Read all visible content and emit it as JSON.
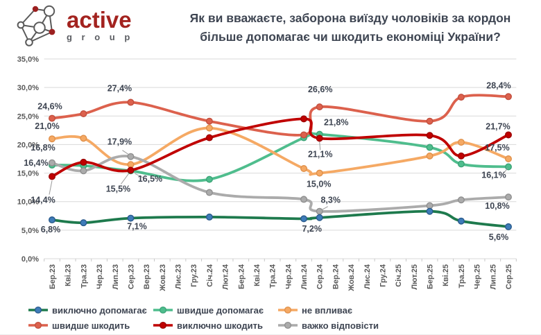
{
  "header": {
    "logo_text": "active",
    "logo_subtext": "g r o u p",
    "brand_color": "#a3231f",
    "title_line1": "Як ви вважаєте, заборона виїзду чоловіків за кордон",
    "title_line2": "більше допомагає чи шкодить економіці України?"
  },
  "chart_data": {
    "type": "line",
    "title": "Як ви вважаєте, заборона виїзду чоловіків за кордон більше допомагає чи шкодить економіці України?",
    "xlabel": "",
    "ylabel": "",
    "ylim": [
      0,
      35
    ],
    "grid": true,
    "legend_position": "bottom",
    "y_ticks": [
      "0,0%",
      "5,0%",
      "10,0%",
      "15,0%",
      "20,0%",
      "25,0%",
      "30,0%",
      "35,0%"
    ],
    "x_labels": [
      "Бер.23",
      "Кві.23",
      "Тра.23",
      "Чер.23",
      "Лип.23",
      "Сер.23",
      "Вер.23",
      "Жов.23",
      "Лис.23",
      "Гру.23",
      "Січ.24",
      "Лют.24",
      "Бер.24",
      "Кві.24",
      "Тра.24",
      "Чер.24",
      "Лип.24",
      "Сер.24",
      "Вер.24",
      "Жов.24",
      "Лис.24",
      "Гру.24",
      "Січ.25",
      "Лют.25",
      "Бер.25",
      "Кві.25",
      "Тра.25",
      "Чер.25",
      "Лип.25",
      "Сер.25"
    ],
    "survey_wave_labels": [
      "Бер.23",
      "Тра.23",
      "Сер.23",
      "Січ.24",
      "Лип.24",
      "Сер.24",
      "Бер.25",
      "Тра.25",
      "Сер.25"
    ],
    "wave_month_indices": [
      0,
      2,
      5,
      10,
      16,
      17,
      24,
      26,
      29
    ],
    "series": [
      {
        "name": "виключно допомагає",
        "color": "#1e7a4d",
        "marker_fill": "#3e7cb9",
        "marker_stroke": "#2a5a8c",
        "values": [
          6.8,
          6.3,
          7.1,
          7.3,
          7.0,
          7.2,
          8.3,
          6.6,
          5.6
        ],
        "labels": [
          {
            "w": 0,
            "t": "6,8%",
            "dx": -2,
            "dy": 18
          },
          {
            "w": 2,
            "t": "7,1%",
            "dx": 9,
            "dy": 16
          },
          {
            "w": 5,
            "t": "7,2%",
            "dx": -11,
            "dy": 20
          },
          {
            "w": 8,
            "t": "5,6%",
            "dx": -14,
            "dy": 19
          }
        ]
      },
      {
        "name": "швидше допомагає",
        "color": "#4fbd8d",
        "marker_fill": "#4fbd8d",
        "marker_stroke": "#3aa376",
        "values": [
          16.4,
          16.3,
          15.4,
          13.9,
          21.2,
          21.8,
          19.5,
          16.6,
          16.1
        ],
        "labels": [
          {
            "w": 0,
            "t": "16,4%",
            "dx": -23,
            "dy": 1
          },
          {
            "w": 5,
            "t": "21,8%",
            "dx": 24,
            "dy": -13
          },
          {
            "w": 8,
            "t": "16,1%",
            "dx": -21,
            "dy": 16,
            "leader": [
              -6,
              8,
              -1,
              2
            ]
          }
        ]
      },
      {
        "name": "не впливає",
        "color": "#f5a964",
        "marker_fill": "#f5a964",
        "marker_stroke": "#e0904a",
        "values": [
          21.0,
          21.1,
          16.5,
          22.9,
          15.8,
          15.0,
          18.0,
          20.4,
          17.5
        ],
        "labels": [
          {
            "w": 0,
            "t": "21,0%",
            "dx": -7,
            "dy": -14
          },
          {
            "w": 2,
            "t": "16,5%",
            "dx": 28,
            "dy": 25,
            "leader": [
              6,
              13,
              20,
              20
            ]
          },
          {
            "w": 5,
            "t": "15,0%",
            "dx": -1,
            "dy": 20
          },
          {
            "w": 8,
            "t": "17,5%",
            "dx": -16,
            "dy": -12
          }
        ]
      },
      {
        "name": "швидше шкодить",
        "color": "#dc614d",
        "marker_fill": "#dc614d",
        "marker_stroke": "#c24f3e",
        "values": [
          24.6,
          25.4,
          27.4,
          24.1,
          21.7,
          26.6,
          24.1,
          28.3,
          28.4
        ],
        "labels": [
          {
            "w": 0,
            "t": "24,6%",
            "dx": -3,
            "dy": -13
          },
          {
            "w": 2,
            "t": "27,4%",
            "dx": -16,
            "dy": -16
          },
          {
            "w": 5,
            "t": "26,6%",
            "dx": 1,
            "dy": -21
          },
          {
            "w": 8,
            "t": "28,4%",
            "dx": -14,
            "dy": -12
          }
        ]
      },
      {
        "name": "виключно шкодить",
        "color": "#c00000",
        "marker_fill": "#c00000",
        "marker_stroke": "#9b0000",
        "values": [
          14.4,
          16.9,
          15.5,
          21.2,
          24.5,
          21.1,
          21.6,
          18.0,
          21.7
        ],
        "labels": [
          {
            "w": 0,
            "t": "14,4%",
            "dx": -13,
            "dy": 38,
            "leader": [
              0,
              6,
              -4,
              26
            ]
          },
          {
            "w": 2,
            "t": "15,5%",
            "dx": -18,
            "dy": 31,
            "leader": [
              -14,
              20,
              -3,
              5
            ]
          },
          {
            "w": 5,
            "t": "21,1%",
            "dx": 1,
            "dy": 27,
            "leader": [
              0,
              5,
              1,
              17
            ]
          },
          {
            "w": 8,
            "t": "21,7%",
            "dx": -15,
            "dy": -8
          }
        ]
      },
      {
        "name": "важко відповісти",
        "color": "#ababab",
        "marker_fill": "#ababab",
        "marker_stroke": "#8f8f8f",
        "values": [
          16.8,
          15.4,
          17.9,
          11.6,
          10.4,
          8.3,
          9.3,
          10.3,
          10.8
        ],
        "labels": [
          {
            "w": 0,
            "t": "16,8%",
            "dx": -13,
            "dy": -18
          },
          {
            "w": 2,
            "t": "17,9%",
            "dx": -16,
            "dy": -17,
            "leader": [
              -12,
              -9,
              -3,
              -3
            ]
          },
          {
            "w": 5,
            "t": "8,3%",
            "dx": 16,
            "dy": -12,
            "leader": [
              12,
              -7,
              3,
              -2
            ]
          },
          {
            "w": 8,
            "t": "10,8%",
            "dx": -16,
            "dy": 17
          }
        ]
      }
    ]
  }
}
